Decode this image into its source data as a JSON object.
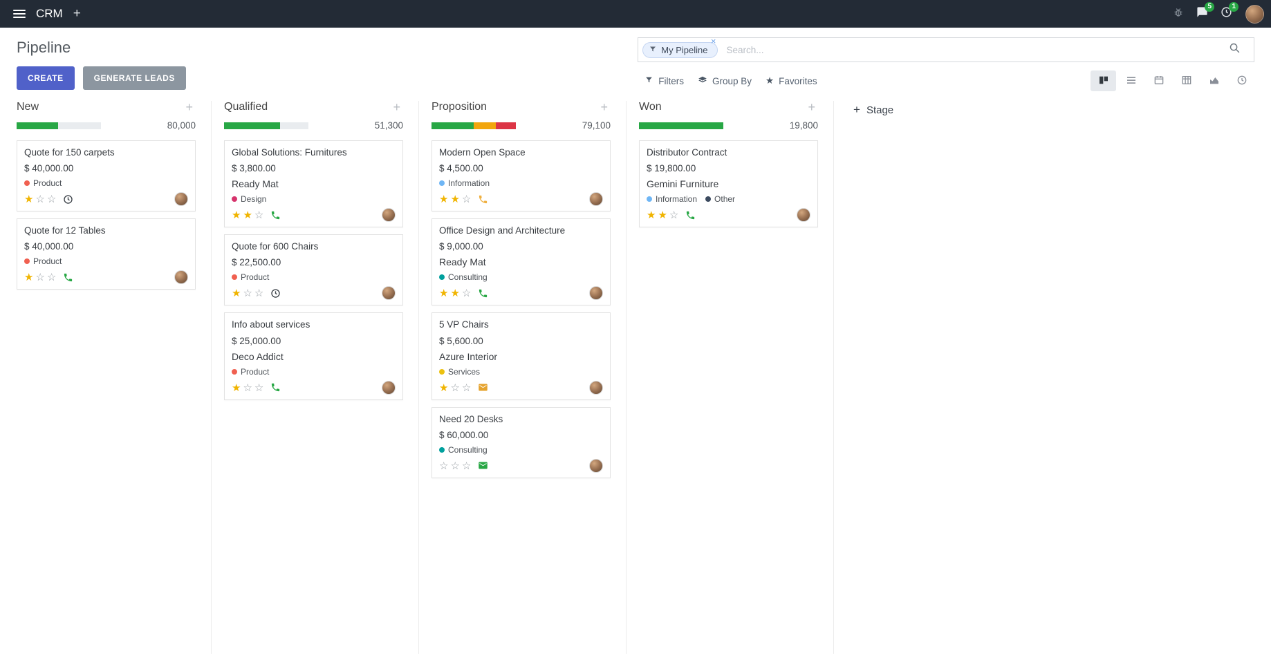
{
  "colors": {
    "topbar_bg": "#232b36",
    "accent": "#5061c9",
    "secondary_button": "#8c96a0",
    "progress_green": "#28a745",
    "progress_yellow": "#f2a60d",
    "progress_red": "#dc3545",
    "star_gold": "#f0b400",
    "badge_green": "#28a745"
  },
  "icons": {
    "plus": "+",
    "close": "×",
    "star_filled": "★",
    "star_empty": "☆",
    "favorites_star": "★"
  },
  "topbar": {
    "app": "CRM",
    "chat_badge": "5",
    "activity_badge": "1"
  },
  "control": {
    "title": "Pipeline",
    "create": "CREATE",
    "generate": "GENERATE LEADS",
    "facet": "My Pipeline",
    "search_placeholder": "Search...",
    "filters": "Filters",
    "group_by": "Group By",
    "favorites": "Favorites"
  },
  "board": {
    "add_stage": "Stage",
    "columns": [
      {
        "name": "New",
        "total": "80,000",
        "progress": [
          {
            "color": "#28a745",
            "pct": 49
          }
        ],
        "cards": [
          {
            "title": "Quote for 150 carpets",
            "amount": "$ 40,000.00",
            "company": "",
            "tags": [
              {
                "label": "Product",
                "color": "#f06050"
              }
            ],
            "stars": 1,
            "activity": {
              "type": "clock",
              "color": "#3f454c"
            }
          },
          {
            "title": "Quote for 12 Tables",
            "amount": "$ 40,000.00",
            "company": "",
            "tags": [
              {
                "label": "Product",
                "color": "#f06050"
              }
            ],
            "stars": 1,
            "activity": {
              "type": "phone",
              "color": "#28a745"
            }
          }
        ]
      },
      {
        "name": "Qualified",
        "total": "51,300",
        "progress": [
          {
            "color": "#28a745",
            "pct": 66
          }
        ],
        "cards": [
          {
            "title": "Global Solutions: Furnitures",
            "amount": "$ 3,800.00",
            "company": "Ready Mat",
            "tags": [
              {
                "label": "Design",
                "color": "#d6336c"
              }
            ],
            "stars": 2,
            "activity": {
              "type": "phone",
              "color": "#28a745"
            }
          },
          {
            "title": "Quote for 600 Chairs",
            "amount": "$ 22,500.00",
            "company": "",
            "tags": [
              {
                "label": "Product",
                "color": "#f06050"
              }
            ],
            "stars": 1,
            "activity": {
              "type": "clock",
              "color": "#3f454c"
            }
          },
          {
            "title": "Info about services",
            "amount": "$ 25,000.00",
            "company": "Deco Addict",
            "tags": [
              {
                "label": "Product",
                "color": "#f06050"
              }
            ],
            "stars": 1,
            "activity": {
              "type": "phone",
              "color": "#28a745"
            }
          }
        ]
      },
      {
        "name": "Proposition",
        "total": "79,100",
        "progress": [
          {
            "color": "#28a745",
            "pct": 50
          },
          {
            "color": "#f2a60d",
            "pct": 26
          },
          {
            "color": "#dc3545",
            "pct": 24
          }
        ],
        "cards": [
          {
            "title": "Modern Open Space",
            "amount": "$ 4,500.00",
            "company": "",
            "tags": [
              {
                "label": "Information",
                "color": "#6fb6f5"
              }
            ],
            "stars": 2,
            "activity": {
              "type": "phone",
              "color": "#efb041"
            }
          },
          {
            "title": "Office Design and Architecture",
            "amount": "$ 9,000.00",
            "company": "Ready Mat",
            "tags": [
              {
                "label": "Consulting",
                "color": "#00a09d"
              }
            ],
            "stars": 2,
            "activity": {
              "type": "phone",
              "color": "#28a745"
            }
          },
          {
            "title": "5 VP Chairs",
            "amount": "$ 5,600.00",
            "company": "Azure Interior",
            "tags": [
              {
                "label": "Services",
                "color": "#ecc110"
              }
            ],
            "stars": 1,
            "activity": {
              "type": "envelope",
              "color": "#e5a32e"
            }
          },
          {
            "title": "Need 20 Desks",
            "amount": "$ 60,000.00",
            "company": "",
            "tags": [
              {
                "label": "Consulting",
                "color": "#00a09d"
              }
            ],
            "stars": 0,
            "activity": {
              "type": "envelope",
              "color": "#28a745"
            }
          }
        ]
      },
      {
        "name": "Won",
        "total": "19,800",
        "progress": [
          {
            "color": "#28a745",
            "pct": 100
          }
        ],
        "cards": [
          {
            "title": "Distributor Contract",
            "amount": "$ 19,800.00",
            "company": "Gemini Furniture",
            "tags": [
              {
                "label": "Information",
                "color": "#6fb6f5"
              },
              {
                "label": "Other",
                "color": "#3b4a5f"
              }
            ],
            "stars": 2,
            "activity": {
              "type": "phone",
              "color": "#28a745"
            }
          }
        ]
      }
    ]
  }
}
